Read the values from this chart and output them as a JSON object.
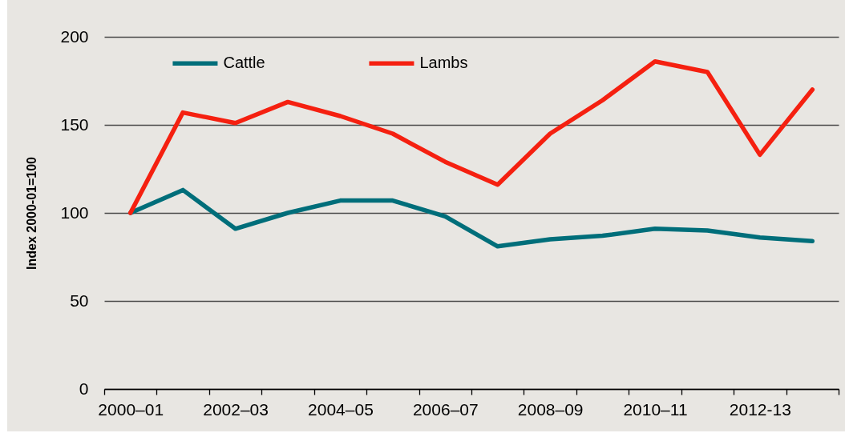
{
  "chart_data": {
    "type": "line",
    "ylabel": "Index  2000-01=100",
    "categories": [
      "2000–01",
      null,
      "2002–03",
      null,
      "2004–05",
      null,
      "2006–07",
      null,
      "2008–09",
      null,
      "2010–11",
      null,
      "2012-13",
      null
    ],
    "series": [
      {
        "name": "Cattle",
        "color": "#006e7a",
        "values": [
          100,
          113,
          91,
          100,
          107,
          107,
          98,
          81,
          85,
          87,
          91,
          90,
          86,
          84
        ]
      },
      {
        "name": "Lambs",
        "color": "#f52010",
        "values": [
          100,
          157,
          151,
          163,
          155,
          145,
          129,
          116,
          145,
          164,
          186,
          180,
          133,
          170
        ]
      }
    ],
    "ylim": [
      0,
      200
    ],
    "yticks": [
      0,
      50,
      100,
      150,
      200
    ],
    "grid": "y",
    "legend": "top left"
  }
}
